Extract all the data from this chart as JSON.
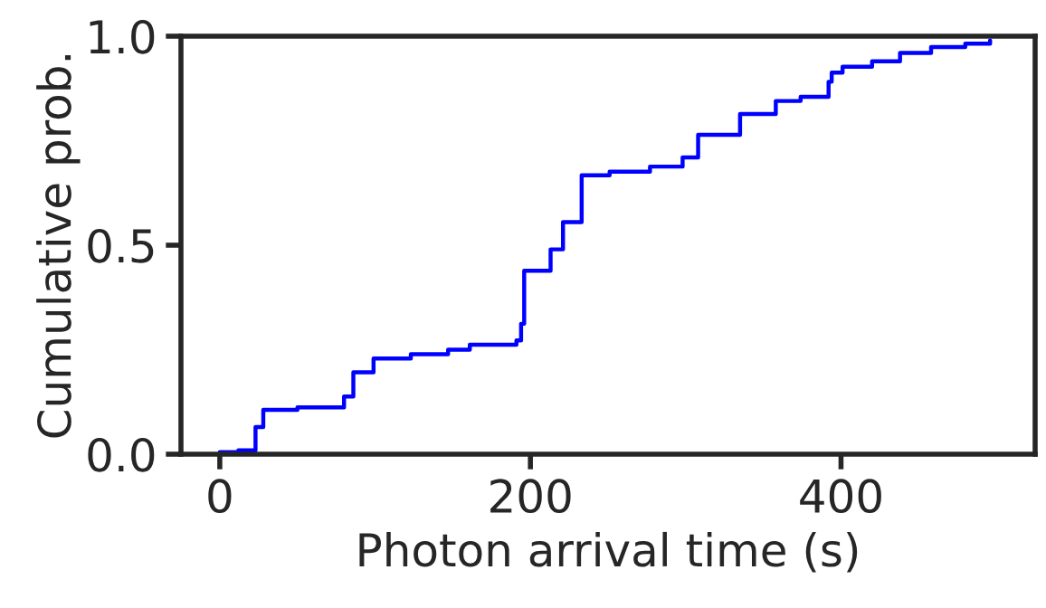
{
  "chart_data": {
    "type": "step",
    "xlabel": "Photon arrival time (s)",
    "ylabel": "Cumulative prob.",
    "x": [
      0,
      12,
      23,
      28,
      50,
      80,
      86,
      99,
      123,
      147,
      161,
      191,
      194,
      196,
      213,
      221,
      233,
      251,
      277,
      298,
      308,
      335,
      358,
      374,
      392,
      394,
      401,
      420,
      438,
      458,
      480,
      496
    ],
    "series": [
      {
        "color": "#0000ff",
        "values": [
          0.005,
          0.009,
          0.065,
          0.106,
          0.112,
          0.138,
          0.196,
          0.229,
          0.239,
          0.25,
          0.262,
          0.272,
          0.312,
          0.439,
          0.49,
          0.555,
          0.667,
          0.676,
          0.688,
          0.71,
          0.764,
          0.814,
          0.845,
          0.855,
          0.891,
          0.913,
          0.927,
          0.94,
          0.96,
          0.974,
          0.982,
          0.99
        ]
      }
    ],
    "xlim": [
      -25,
      525
    ],
    "ylim": [
      0,
      1
    ],
    "xticks": [
      0,
      200,
      400
    ],
    "yticks": [
      {
        "value": 0,
        "label": "0.0"
      },
      {
        "value": 0.5,
        "label": "0.5"
      },
      {
        "value": 1,
        "label": "1.0"
      }
    ],
    "line_style": "solid",
    "marker": "none"
  }
}
